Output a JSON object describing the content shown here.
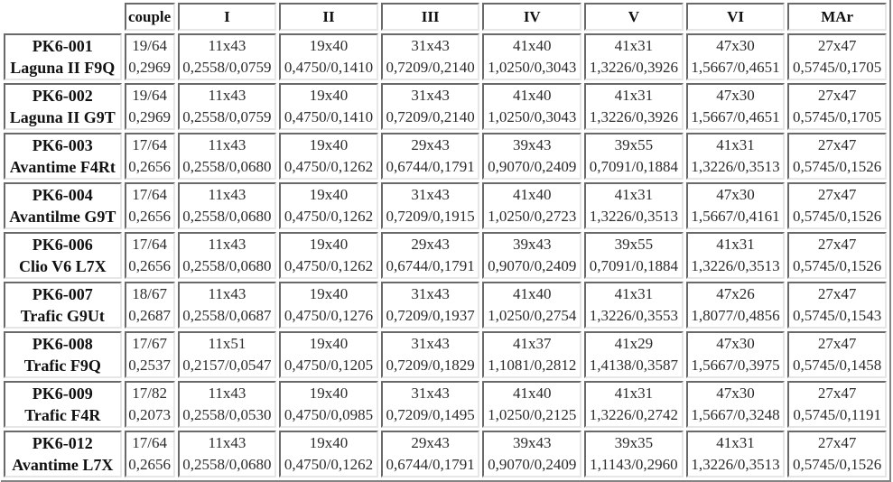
{
  "headers": [
    "couple",
    "I",
    "II",
    "III",
    "IV",
    "V",
    "VI",
    "MAr"
  ],
  "rows": [
    {
      "code": "PK6-001",
      "model": "Laguna II F9Q",
      "cells": [
        [
          "19/64",
          "0,2969"
        ],
        [
          "11x43",
          "0,2558/0,0759"
        ],
        [
          "19x40",
          "0,4750/0,1410"
        ],
        [
          "31x43",
          "0,7209/0,2140"
        ],
        [
          "41x40",
          "1,0250/0,3043"
        ],
        [
          "41x31",
          "1,3226/0,3926"
        ],
        [
          "47x30",
          "1,5667/0,4651"
        ],
        [
          "27x47",
          "0,5745/0,1705"
        ]
      ]
    },
    {
      "code": "PK6-002",
      "model": "Laguna II G9T",
      "cells": [
        [
          "19/64",
          "0,2969"
        ],
        [
          "11x43",
          "0,2558/0,0759"
        ],
        [
          "19x40",
          "0,4750/0,1410"
        ],
        [
          "31x43",
          "0,7209/0,2140"
        ],
        [
          "41x40",
          "1,0250/0,3043"
        ],
        [
          "41x31",
          "1,3226/0,3926"
        ],
        [
          "47x30",
          "1,5667/0,4651"
        ],
        [
          "27x47",
          "0,5745/0,1705"
        ]
      ]
    },
    {
      "code": "PK6-003",
      "model": "Avantime F4Rt",
      "cells": [
        [
          "17/64",
          "0,2656"
        ],
        [
          "11x43",
          "0,2558/0,0680"
        ],
        [
          "19x40",
          "0,4750/0,1262"
        ],
        [
          "29x43",
          "0,6744/0,1791"
        ],
        [
          "39x43",
          "0,9070/0,2409"
        ],
        [
          "39x55",
          "0,7091/0,1884"
        ],
        [
          "41x31",
          "1,3226/0,3513"
        ],
        [
          "27x47",
          "0,5745/0,1526"
        ]
      ]
    },
    {
      "code": "PK6-004",
      "model": "Avantilme G9T",
      "cells": [
        [
          "17/64",
          "0,2656"
        ],
        [
          "11x43",
          "0,2558/0,0680"
        ],
        [
          "19x40",
          "0,4750/0,1262"
        ],
        [
          "31x43",
          "0,7209/0,1915"
        ],
        [
          "41x40",
          "1,0250/0,2723"
        ],
        [
          "41x31",
          "1,3226/0,3513"
        ],
        [
          "47x30",
          "1,5667/0,4161"
        ],
        [
          "27x47",
          "0,5745/0,1526"
        ]
      ]
    },
    {
      "code": "PK6-006",
      "model": "Clio V6 L7X",
      "cells": [
        [
          "17/64",
          "0,2656"
        ],
        [
          "11x43",
          "0,2558/0,0680"
        ],
        [
          "19x40",
          "0,4750/0,1262"
        ],
        [
          "29x43",
          "0,6744/0,1791"
        ],
        [
          "39x43",
          "0,9070/0,2409"
        ],
        [
          "39x55",
          "0,7091/0,1884"
        ],
        [
          "41x31",
          "1,3226/0,3513"
        ],
        [
          "27x47",
          "0,5745/0,1526"
        ]
      ]
    },
    {
      "code": "PK6-007",
      "model": "Trafic G9Ut",
      "cells": [
        [
          "18/67",
          "0,2687"
        ],
        [
          "11x43",
          "0,2558/0,0687"
        ],
        [
          "19x40",
          "0,4750/0,1276"
        ],
        [
          "31x43",
          "0,7209/0,1937"
        ],
        [
          "41x40",
          "1,0250/0,2754"
        ],
        [
          "41x31",
          "1,3226/0,3553"
        ],
        [
          "47x26",
          "1,8077/0,4856"
        ],
        [
          "27x47",
          "0,5745/0,1543"
        ]
      ]
    },
    {
      "code": "PK6-008",
      "model": "Trafic F9Q",
      "cells": [
        [
          "17/67",
          "0,2537"
        ],
        [
          "11x51",
          "0,2157/0,0547"
        ],
        [
          "19x40",
          "0,4750/0,1205"
        ],
        [
          "31x43",
          "0,7209/0,1829"
        ],
        [
          "41x37",
          "1,1081/0,2812"
        ],
        [
          "41x29",
          "1,4138/0,3587"
        ],
        [
          "47x30",
          "1,5667/0,3975"
        ],
        [
          "27x47",
          "0,5745/0,1458"
        ]
      ]
    },
    {
      "code": "PK6-009",
      "model": "Trafic F4R",
      "cells": [
        [
          "17/82",
          "0,2073"
        ],
        [
          "11x43",
          "0,2558/0,0530"
        ],
        [
          "19x40",
          "0,4750/0,0985"
        ],
        [
          "31x43",
          "0,7209/0,1495"
        ],
        [
          "41x40",
          "1,0250/0,2125"
        ],
        [
          "41x31",
          "1,3226/0,2742"
        ],
        [
          "47x30",
          "1,5667/0,3248"
        ],
        [
          "27x47",
          "0,5745/0,1191"
        ]
      ]
    },
    {
      "code": "PK6-012",
      "model": "Avantime L7X",
      "cells": [
        [
          "17/64",
          "0,2656"
        ],
        [
          "11x43",
          "0,2558/0,0680"
        ],
        [
          "19x40",
          "0,4750/0,1262"
        ],
        [
          "29x43",
          "0,6744/0,1791"
        ],
        [
          "39x43",
          "0,9070/0,2409"
        ],
        [
          "39x35",
          "1,1143/0,2960"
        ],
        [
          "41x31",
          "1,3226/0,3513"
        ],
        [
          "27x47",
          "0,5745/0,1526"
        ]
      ]
    }
  ]
}
